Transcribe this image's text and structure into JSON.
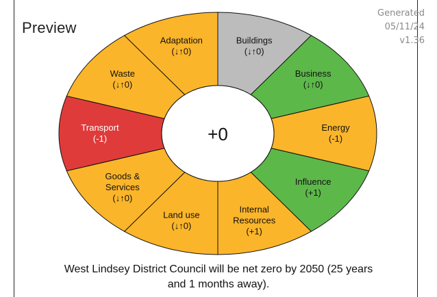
{
  "header": {
    "title": "Preview",
    "generated_label": "Generated",
    "date": "05/11/24",
    "version": "v1.36"
  },
  "center": {
    "score": "+0"
  },
  "colors": {
    "amber": "#fbb52a",
    "red": "#e03b3b",
    "green": "#5db84a",
    "grey": "#bcbcbc",
    "stroke": "#111111",
    "light_text": "#ffffff"
  },
  "segments": [
    {
      "lines": [
        "Buildings",
        "(↓↑0)"
      ],
      "status": "neutral",
      "color": "grey"
    },
    {
      "lines": [
        "Business",
        "(↓↑0)"
      ],
      "status": "positive",
      "color": "green"
    },
    {
      "lines": [
        "Energy",
        "(-1)"
      ],
      "status": "warning",
      "color": "amber"
    },
    {
      "lines": [
        "Influence",
        "(+1)"
      ],
      "status": "positive",
      "color": "green"
    },
    {
      "lines": [
        "Internal",
        "Resources",
        "(+1)"
      ],
      "status": "warning",
      "color": "amber"
    },
    {
      "lines": [
        "Land use",
        "(↓↑0)"
      ],
      "status": "warning",
      "color": "amber"
    },
    {
      "lines": [
        "Goods &",
        "Services",
        "(↓↑0)"
      ],
      "status": "warning",
      "color": "amber"
    },
    {
      "lines": [
        "Transport",
        "(-1)"
      ],
      "status": "negative",
      "color": "red"
    },
    {
      "lines": [
        "Waste",
        "(↓↑0)"
      ],
      "status": "warning",
      "color": "amber"
    },
    {
      "lines": [
        "Adaptation",
        "(↓↑0)"
      ],
      "status": "warning",
      "color": "amber"
    }
  ],
  "footer": {
    "line1": "West Lindsey District Council will be net zero by 2050 (25 years",
    "line2": "and 1 months away)."
  }
}
